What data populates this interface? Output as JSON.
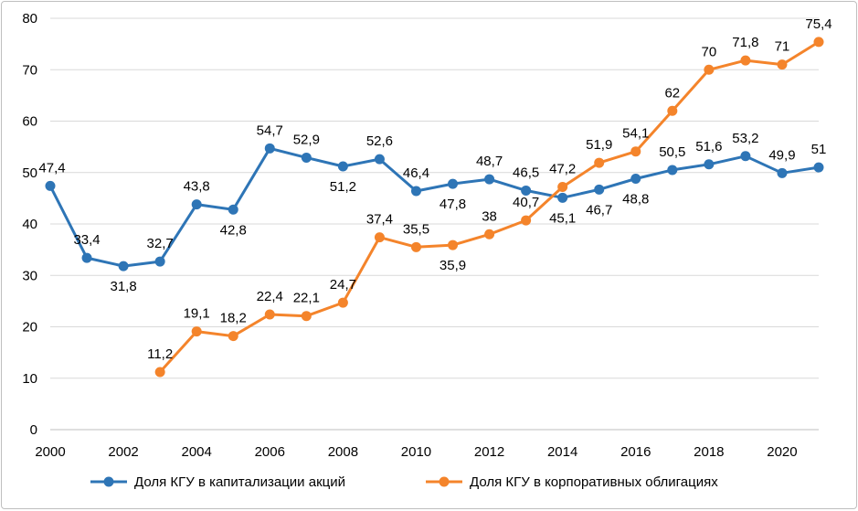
{
  "chart_data": {
    "type": "line",
    "title": "",
    "xlabel": "",
    "ylabel": "",
    "xlim": [
      2000,
      2021
    ],
    "ylim": [
      0,
      80
    ],
    "x_ticks": [
      "2000",
      "2002",
      "2004",
      "2006",
      "2008",
      "2010",
      "2012",
      "2014",
      "2016",
      "2018",
      "2020"
    ],
    "y_ticks": [
      "0",
      "10",
      "20",
      "30",
      "40",
      "50",
      "60",
      "70",
      "80"
    ],
    "grid": "horizontal",
    "legend_position": "bottom",
    "series": [
      {
        "name": "Доля КГУ в капитализации акций",
        "color": "#2e75b6",
        "x": [
          2000,
          2001,
          2002,
          2003,
          2004,
          2005,
          2006,
          2007,
          2008,
          2009,
          2010,
          2011,
          2012,
          2013,
          2014,
          2015,
          2016,
          2017,
          2018,
          2019,
          2020,
          2021
        ],
        "values": [
          47.4,
          33.4,
          31.8,
          32.7,
          43.8,
          42.8,
          54.7,
          52.9,
          51.2,
          52.6,
          46.4,
          47.8,
          48.7,
          46.5,
          45.1,
          46.7,
          48.8,
          50.5,
          51.6,
          53.2,
          49.9,
          51
        ],
        "labels": [
          "47,4",
          "33,4",
          "31,8",
          "32,7",
          "43,8",
          "42,8",
          "54,7",
          "52,9",
          "51,2",
          "52,6",
          "46,4",
          "47,8",
          "48,7",
          "46,5",
          "45,1",
          "46,7",
          "48,8",
          "50,5",
          "51,6",
          "53,2",
          "49,9",
          "51"
        ],
        "label_side": [
          "above",
          "above",
          "below",
          "above",
          "above",
          "below",
          "above",
          "above",
          "below",
          "above",
          "above",
          "below",
          "above",
          "above",
          "below",
          "below",
          "below",
          "above",
          "above",
          "above",
          "above",
          "above"
        ]
      },
      {
        "name": "Доля КГУ в корпоративных облигациях",
        "color": "#f4842b",
        "x": [
          2003,
          2004,
          2005,
          2006,
          2007,
          2008,
          2009,
          2010,
          2011,
          2012,
          2013,
          2014,
          2015,
          2016,
          2017,
          2018,
          2019,
          2020,
          2021
        ],
        "values": [
          11.2,
          19.1,
          18.2,
          22.4,
          22.1,
          24.7,
          37.4,
          35.5,
          35.9,
          38,
          40.7,
          47.2,
          51.9,
          54.1,
          62,
          70,
          71.8,
          71,
          75.4
        ],
        "labels": [
          "11,2",
          "19,1",
          "18,2",
          "22,4",
          "22,1",
          "24,7",
          "37,4",
          "35,5",
          "35,9",
          "38",
          "40,7",
          "47,2",
          "51,9",
          "54,1",
          "62",
          "70",
          "71,8",
          "71",
          "75,4"
        ],
        "label_side": [
          "above",
          "above",
          "above",
          "above",
          "above",
          "above",
          "above",
          "above",
          "below",
          "above",
          "above",
          "above",
          "above",
          "above",
          "above",
          "above",
          "above",
          "above",
          "above"
        ]
      }
    ]
  }
}
